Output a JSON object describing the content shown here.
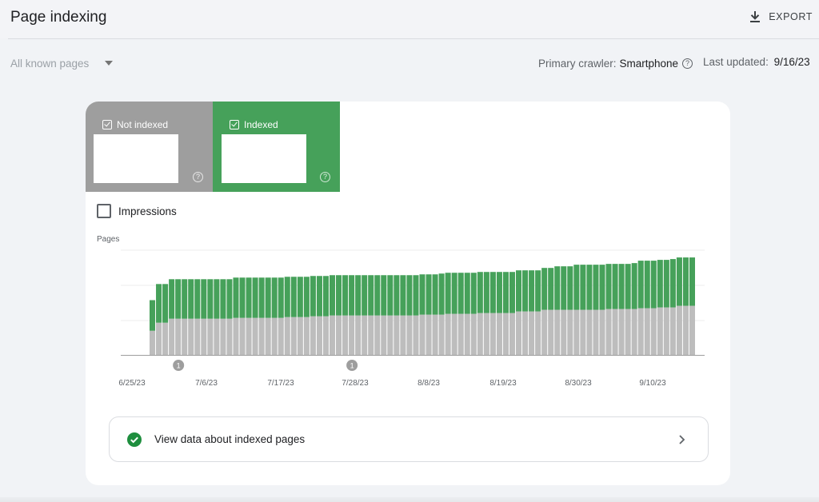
{
  "header": {
    "title": "Page indexing",
    "export_label": "EXPORT",
    "export_icon": "download-icon"
  },
  "filters": {
    "selected": "All known pages",
    "crawler_label": "Primary crawler:",
    "crawler_value": "Smartphone",
    "updated_label": "Last updated:",
    "updated_value": "9/16/23"
  },
  "tiles": {
    "not_indexed": {
      "label": "Not indexed",
      "color": "#9e9e9e"
    },
    "indexed": {
      "label": "Indexed",
      "color": "#46a15a"
    }
  },
  "impressions_label": "Impressions",
  "chart_data": {
    "type": "bar",
    "stacked": true,
    "ylabel": "Pages",
    "x_tick_labels": [
      "6/25/23",
      "7/6/23",
      "7/17/23",
      "7/28/23",
      "8/8/23",
      "8/19/23",
      "8/30/23",
      "9/10/23"
    ],
    "series": [
      {
        "name": "Not indexed",
        "color": "#bdbdbd",
        "values": [
          30,
          40,
          40,
          45,
          45,
          45,
          45,
          45,
          45,
          45,
          45,
          45,
          45,
          46,
          46,
          46,
          46,
          46,
          46,
          46,
          46,
          47,
          47,
          47,
          47,
          48,
          48,
          48,
          49,
          49,
          49,
          49,
          49,
          49,
          49,
          49,
          49,
          49,
          49,
          49,
          49,
          49,
          50,
          50,
          50,
          50,
          51,
          51,
          51,
          51,
          51,
          52,
          52,
          52,
          52,
          52,
          52,
          54,
          54,
          54,
          54,
          56,
          56,
          56,
          56,
          56,
          56,
          56,
          56,
          56,
          56,
          57,
          57,
          57,
          57,
          57,
          58,
          58,
          58,
          59,
          59,
          59,
          61,
          61,
          61
        ]
      },
      {
        "name": "Indexed",
        "color": "#46a15a",
        "values": [
          38,
          48,
          48,
          49,
          49,
          49,
          49,
          49,
          49,
          49,
          49,
          49,
          49,
          50,
          50,
          50,
          50,
          50,
          50,
          50,
          50,
          50,
          50,
          50,
          50,
          50,
          50,
          50,
          50,
          50,
          50,
          50,
          50,
          50,
          50,
          50,
          50,
          50,
          50,
          50,
          50,
          50,
          50,
          50,
          50,
          51,
          51,
          51,
          51,
          51,
          51,
          51,
          51,
          51,
          51,
          51,
          51,
          51,
          51,
          51,
          51,
          52,
          52,
          54,
          54,
          54,
          56,
          56,
          56,
          56,
          56,
          56,
          56,
          56,
          56,
          57,
          59,
          59,
          59,
          59,
          59,
          60,
          60,
          60,
          60
        ]
      }
    ],
    "annotations": [
      {
        "label": "1",
        "x_index": 4
      },
      {
        "label": "1",
        "x_index": 31
      }
    ],
    "grid": true
  },
  "indexed_link": {
    "text": "View data about indexed pages",
    "icon": "check-circle-icon",
    "chevron": "chevron-right-icon"
  }
}
